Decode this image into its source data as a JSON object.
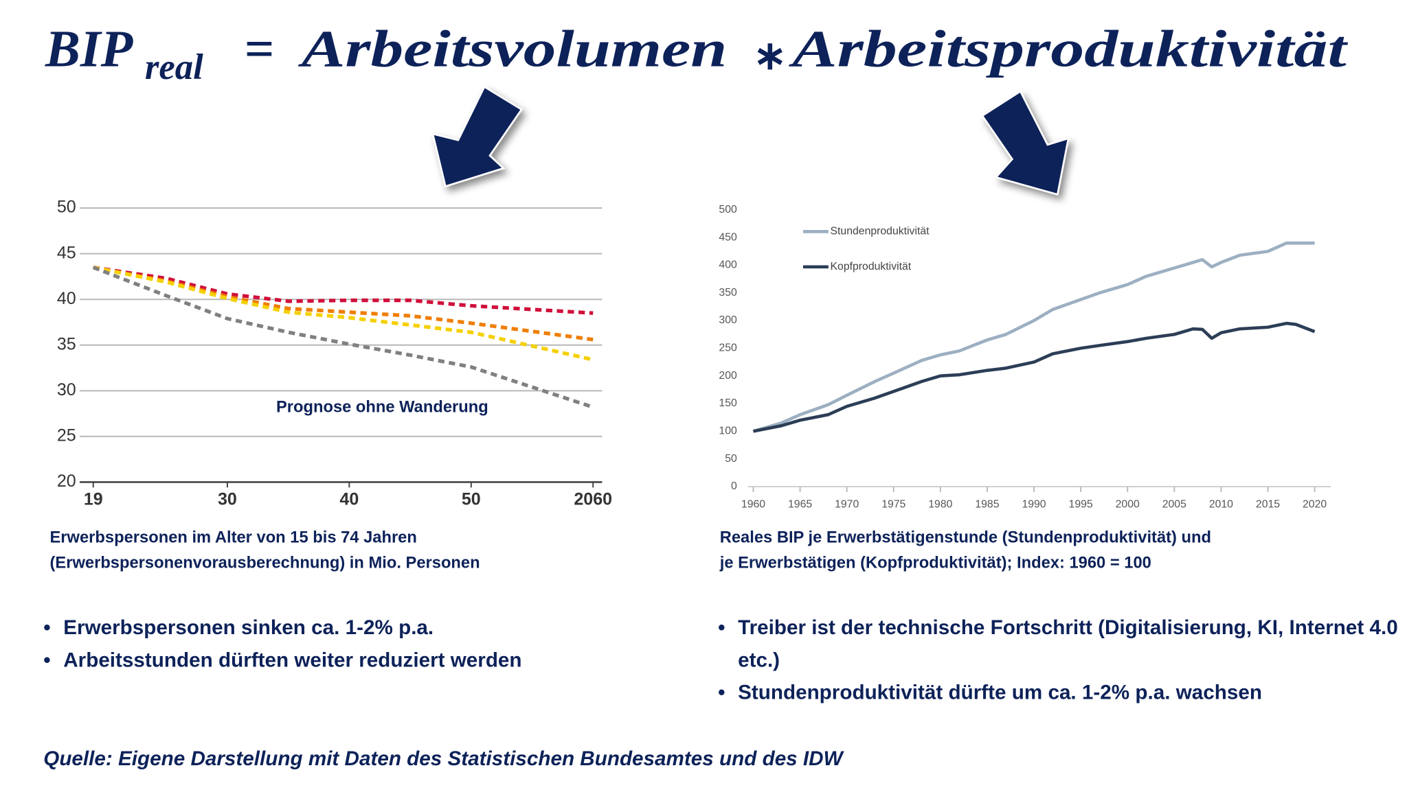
{
  "formula": {
    "lhs": "BIP",
    "subscript": "real",
    "eq": "=",
    "term1": "Arbeitsvolumen",
    "op": "∗",
    "term2": "Arbeitsproduktivität"
  },
  "chart_data": [
    {
      "type": "line",
      "x": [
        2019,
        2025,
        2030,
        2035,
        2040,
        2045,
        2050,
        2055,
        2060
      ],
      "xlim": [
        2019,
        2060
      ],
      "xticks": [
        {
          "value": 2019,
          "label": "19"
        },
        {
          "value": 2030,
          "label": "30"
        },
        {
          "value": 2040,
          "label": "40"
        },
        {
          "value": 2050,
          "label": "50"
        },
        2060
      ],
      "ylim": [
        20,
        50
      ],
      "yticks": [
        20,
        25,
        30,
        35,
        40,
        45,
        50
      ],
      "grid": true,
      "dashed": true,
      "annotation": "Prognose ohne Wanderung",
      "series": [
        {
          "color": "#d0103a",
          "values": [
            43.5,
            42.3,
            40.6,
            39.8,
            39.9,
            39.9,
            39.3,
            38.9,
            38.5
          ]
        },
        {
          "color": "#f07d00",
          "values": [
            43.5,
            42.0,
            40.3,
            39.0,
            38.6,
            38.2,
            37.4,
            36.5,
            35.6
          ]
        },
        {
          "color": "#f5d000",
          "values": [
            43.5,
            41.9,
            40.1,
            38.6,
            38.0,
            37.2,
            36.4,
            34.9,
            33.4
          ]
        },
        {
          "color": "#808080",
          "values": [
            43.5,
            40.4,
            37.9,
            36.4,
            35.1,
            33.9,
            32.6,
            30.4,
            28.2
          ]
        }
      ],
      "caption": [
        "Erwerbspersonen im Alter von 15 bis 74 Jahren",
        "(Erwerbspersonenvorausberechnung) in Mio. Personen"
      ]
    },
    {
      "type": "line",
      "x": [
        1960,
        1963,
        1965,
        1968,
        1970,
        1973,
        1975,
        1978,
        1980,
        1982,
        1985,
        1987,
        1990,
        1992,
        1995,
        1997,
        2000,
        2002,
        2005,
        2007,
        2008,
        2009,
        2010,
        2012,
        2015,
        2017,
        2018,
        2020
      ],
      "xlim": [
        1960,
        2020
      ],
      "xticks": [
        1960,
        1965,
        1970,
        1975,
        1980,
        1985,
        1990,
        1995,
        2000,
        2005,
        2010,
        2015,
        2020
      ],
      "ylim": [
        0,
        500
      ],
      "yticks": [
        0,
        50,
        100,
        150,
        200,
        250,
        300,
        350,
        400,
        450,
        500
      ],
      "grid": false,
      "legend": "upper left",
      "series": [
        {
          "name": "Stundenproduktivität",
          "color": "#9dafc2",
          "values": [
            100,
            115,
            130,
            148,
            165,
            190,
            205,
            228,
            238,
            245,
            265,
            275,
            300,
            320,
            338,
            350,
            365,
            380,
            395,
            405,
            410,
            397,
            405,
            418,
            425,
            440,
            440,
            440
          ]
        },
        {
          "name": "Kopfproduktivität",
          "color": "#2c3e56",
          "values": [
            100,
            110,
            120,
            130,
            145,
            160,
            172,
            190,
            200,
            202,
            210,
            214,
            225,
            240,
            250,
            255,
            262,
            268,
            275,
            285,
            284,
            268,
            278,
            285,
            288,
            295,
            293,
            280
          ]
        }
      ],
      "caption": [
        "Reales BIP je Erwerbstätigenstunde (Stundenproduktivität) und",
        "je Erwerbstätigen (Kopfproduktivität); Index: 1960 = 100"
      ]
    }
  ],
  "bullets_left": [
    "Erwerbspersonen sinken ca. 1-2% p.a.",
    "Arbeitsstunden dürften weiter reduziert werden"
  ],
  "bullets_right": [
    "Treiber ist der technische Fortschritt (Digitalisierung, KI, Internet 4.0 etc.)",
    "Stundenproduktivität dürfte um ca. 1-2% p.a. wachsen"
  ],
  "source": "Quelle: Eigene Darstellung mit Daten des Statistischen Bundesamtes und des IDW"
}
